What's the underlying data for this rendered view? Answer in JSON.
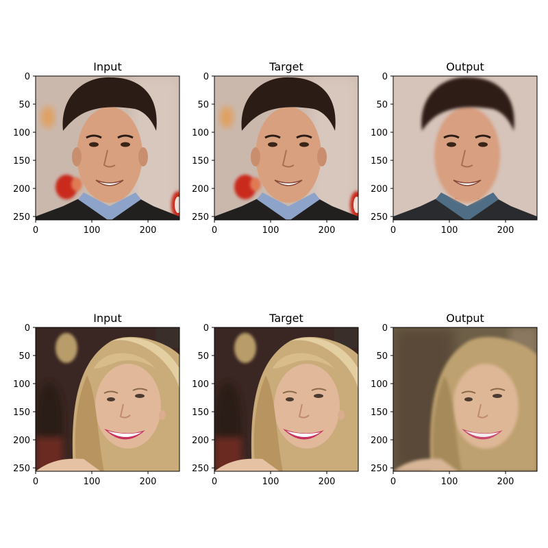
{
  "rows": [
    {
      "panels": [
        {
          "title": "Input",
          "image": "Photo of a smiling dark-haired man in a dark suit and blue shirt, warm blurred background with red logos"
        },
        {
          "title": "Target",
          "image": "Same photo of the smiling dark-haired man in a dark suit and blue shirt"
        },
        {
          "title": "Output",
          "image": "Reconstructed, smoother version of the smiling dark-haired man with a plainer background"
        }
      ]
    },
    {
      "panels": [
        {
          "title": "Input",
          "image": "Photo of a laughing blonde woman with pink lipstick, hair blowing across her face, dark blurred background"
        },
        {
          "title": "Target",
          "image": "Same photo of the laughing blonde woman with pink lipstick"
        },
        {
          "title": "Output",
          "image": "Reconstructed, blurrier version of the laughing blonde woman with a muted background"
        }
      ]
    }
  ],
  "axes": {
    "x_ticks": [
      0,
      100,
      200
    ],
    "y_ticks": [
      0,
      50,
      100,
      150,
      200,
      250
    ],
    "xlim": [
      0,
      256
    ],
    "ylim": [
      0,
      256
    ],
    "y_inverted": true
  },
  "palette": {
    "man_background": "#cbb8ad",
    "man_skin": "#d9a07f",
    "man_hair": "#2b1c16",
    "man_suit": "#22201f",
    "man_shirt": "#8ea3c9",
    "man_logo_red": "#c92a1e",
    "man_out_background": "#d6c3b9",
    "man_out_shirt": "#4f6d85",
    "woman_background": "#3a2622",
    "woman_hair": "#c9ac7a",
    "woman_skin": "#e1b89a",
    "woman_lips": "#c8305e",
    "woman_out_background": "#6e6048"
  }
}
